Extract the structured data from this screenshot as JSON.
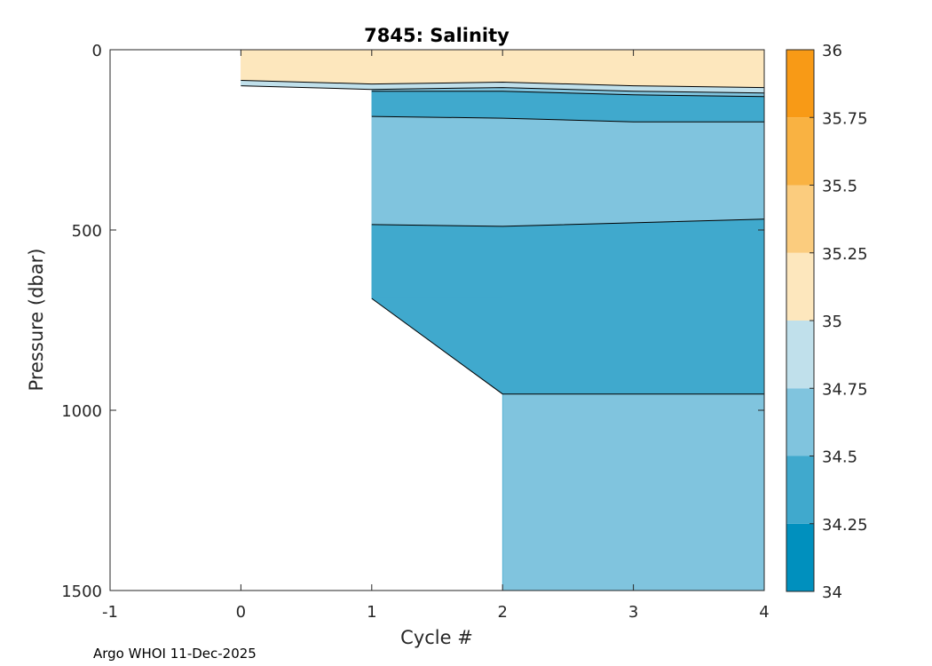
{
  "chart_data": {
    "type": "contourf",
    "title": "7845:  Salinity",
    "xlabel": "Cycle #",
    "ylabel": "Pressure (dbar)",
    "xlim": [
      -1,
      4
    ],
    "ylim": [
      0,
      1500
    ],
    "y_reversed": true,
    "xticks": [
      "-1",
      "0",
      "1",
      "2",
      "3",
      "4"
    ],
    "yticks": [
      "0",
      "500",
      "1000",
      "1500"
    ],
    "colorbar": {
      "levels": [
        34,
        34.25,
        34.5,
        34.75,
        35,
        35.25,
        35.5,
        35.75,
        36
      ],
      "tick_labels": [
        "34",
        "34.25",
        "34.5",
        "34.75",
        "35",
        "35.25",
        "35.5",
        "35.75",
        "36"
      ],
      "colors": [
        "#0090be",
        "#40a9cd",
        "#80c4de",
        "#c0e0eb",
        "#fde7bd",
        "#fbcc7e",
        "#f9b242",
        "#f89a16"
      ]
    },
    "profiles": [
      {
        "cycle": 0,
        "max_pressure": 100,
        "tops": {
          "35.0-35.25": 0,
          "34.75-35.0": 85
        }
      },
      {
        "cycle": 1,
        "max_pressure": 690,
        "tops": {
          "35.0-35.25": 0,
          "34.75-35.0": 95,
          "34.5-34.75": 110,
          "34.25-34.5": 115,
          "34.5-34.75b": 185,
          "34.25-34.5b": 485
        }
      },
      {
        "cycle": 2,
        "max_pressure": 1500,
        "tops": {
          "35.0-35.25": 0,
          "34.75-35.0": 90,
          "34.5-34.75": 105,
          "34.25-34.5": 115,
          "34.5-34.75b": 190,
          "34.25-34.5b": 490,
          "34.5-34.75c": 955
        }
      },
      {
        "cycle": 3,
        "max_pressure": 1500,
        "tops": {
          "35.0-35.25": 0,
          "34.75-35.0": 100,
          "34.5-34.75": 115,
          "34.25-34.5": 125,
          "34.5-34.75b": 200,
          "34.25-34.5b": 480,
          "34.5-34.75c": 955
        }
      },
      {
        "cycle": 4,
        "max_pressure": 1500,
        "tops": {
          "35.0-35.25": 0,
          "34.75-35.0": 105,
          "34.5-34.75": 120,
          "34.25-34.5": 130,
          "34.5-34.75b": 200,
          "34.25-34.5b": 470,
          "34.5-34.75c": 955
        }
      }
    ],
    "bands": [
      {
        "color": "#fde7bd",
        "top": [
          0,
          0,
          0,
          0,
          0
        ],
        "bottom": [
          85,
          95,
          90,
          100,
          105
        ]
      },
      {
        "color": "#c0e0eb",
        "top": [
          85,
          95,
          90,
          100,
          105
        ],
        "bottom": [
          100,
          110,
          105,
          115,
          120
        ]
      },
      {
        "color": "#80c4de",
        "top": [
          null,
          110,
          105,
          115,
          120
        ],
        "bottom": [
          null,
          115,
          115,
          125,
          130
        ]
      },
      {
        "color": "#40a9cd",
        "top": [
          null,
          115,
          115,
          125,
          130
        ],
        "bottom": [
          null,
          185,
          190,
          200,
          200
        ]
      },
      {
        "color": "#80c4de",
        "top": [
          null,
          185,
          190,
          200,
          200
        ],
        "bottom": [
          null,
          485,
          490,
          480,
          470
        ]
      },
      {
        "color": "#40a9cd",
        "top": [
          null,
          485,
          490,
          480,
          470
        ],
        "bottom": [
          null,
          690,
          955,
          955,
          955
        ]
      },
      {
        "color": "#80c4de",
        "top": [
          null,
          null,
          955,
          955,
          955
        ],
        "bottom": [
          null,
          null,
          1500,
          1500,
          1500
        ]
      }
    ]
  },
  "footer": {
    "credit": "Argo WHOI 11-Dec-2025"
  }
}
